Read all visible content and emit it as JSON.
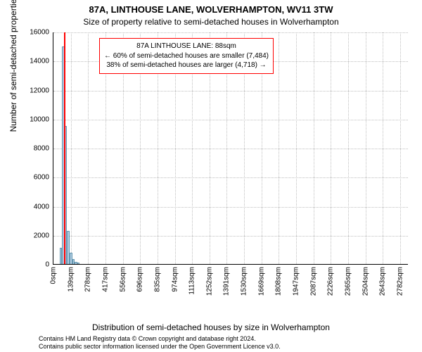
{
  "title_main": "87A, LINTHOUSE LANE, WOLVERHAMPTON, WV11 3TW",
  "title_sub": "Size of property relative to semi-detached houses in Wolverhampton",
  "ylabel": "Number of semi-detached properties",
  "xlabel": "Distribution of semi-detached houses by size in Wolverhampton",
  "attribution_line1": "Contains HM Land Registry data © Crown copyright and database right 2024.",
  "attribution_line2": "Contains public sector information licensed under the Open Government Licence v3.0.",
  "chart": {
    "type": "histogram",
    "ylim": [
      0,
      16000
    ],
    "ytick_step": 2000,
    "xlim_sqm": [
      0,
      2850
    ],
    "xticks_sqm": [
      0,
      139,
      278,
      417,
      556,
      696,
      835,
      974,
      1113,
      1252,
      1391,
      1530,
      1669,
      1808,
      1947,
      2087,
      2226,
      2365,
      2504,
      2643,
      2782
    ],
    "xtick_suffix": "sqm",
    "bar_color": "#b3cde3",
    "bar_border_color": "#6497b1",
    "grid_color": "#bfbfbf",
    "highlight_line_color": "#ff0000",
    "highlight_line_width": 2,
    "highlight_sqm": 88,
    "background_color": "#ffffff",
    "bars": [
      {
        "x0": 50,
        "x1": 70,
        "count": 1100
      },
      {
        "x0": 70,
        "x1": 90,
        "count": 15000
      },
      {
        "x0": 90,
        "x1": 110,
        "count": 9500
      },
      {
        "x0": 110,
        "x1": 130,
        "count": 2300
      },
      {
        "x0": 130,
        "x1": 150,
        "count": 800
      },
      {
        "x0": 150,
        "x1": 170,
        "count": 320
      },
      {
        "x0": 170,
        "x1": 190,
        "count": 150
      },
      {
        "x0": 190,
        "x1": 210,
        "count": 90
      }
    ]
  },
  "popup": {
    "border_color": "#ff0000",
    "line1": "87A LINTHOUSE LANE: 88sqm",
    "line2": "← 60% of semi-detached houses are smaller (7,484)",
    "line3": "38% of semi-detached houses are larger (4,718) →"
  }
}
